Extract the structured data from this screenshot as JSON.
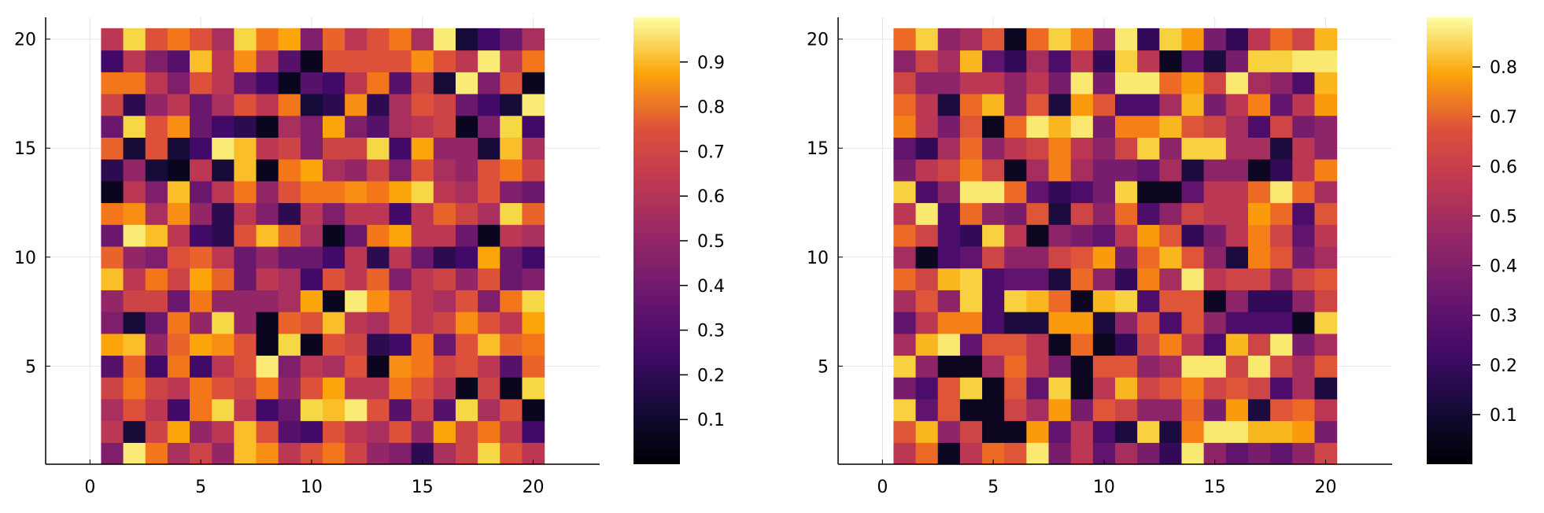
{
  "chart_data": [
    {
      "type": "heatmap",
      "title": "",
      "xlabel": "",
      "ylabel": "",
      "xlim": [
        -2,
        23
      ],
      "ylim": [
        0.5,
        21
      ],
      "xticks": [
        0,
        5,
        10,
        15,
        20
      ],
      "yticks": [
        5,
        10,
        15,
        20
      ],
      "xtick_labels": [
        "0",
        "5",
        "10",
        "15",
        "20"
      ],
      "ytick_labels": [
        "5",
        "10",
        "15",
        "20"
      ],
      "grid": true,
      "colormap": "inferno",
      "color_range": [
        0.0,
        1.0
      ],
      "colorbar_ticks": [
        0.1,
        0.2,
        0.3,
        0.4,
        0.5,
        0.6,
        0.7,
        0.8,
        0.9
      ],
      "colorbar_tick_labels": [
        "0.1",
        "0.2",
        "0.3",
        "0.4",
        "0.5",
        "0.6",
        "0.7",
        "0.8",
        "0.9"
      ],
      "x": [
        1,
        2,
        3,
        4,
        5,
        6,
        7,
        8,
        9,
        10,
        11,
        12,
        13,
        14,
        15,
        16,
        17,
        18,
        19,
        20
      ],
      "y": [
        1,
        2,
        3,
        4,
        5,
        6,
        7,
        8,
        9,
        10,
        11,
        12,
        13,
        14,
        15,
        16,
        17,
        18,
        19,
        20
      ],
      "z": [
        [
          0.35,
          0.95,
          0.7,
          0.45,
          0.55,
          0.4,
          0.85,
          0.75,
          0.5,
          0.6,
          0.7,
          0.55,
          0.4,
          0.35,
          0.15,
          0.45,
          0.55,
          0.9,
          0.6,
          0.5
        ],
        [
          0.5,
          0.1,
          0.55,
          0.8,
          0.4,
          0.5,
          0.85,
          0.6,
          0.25,
          0.2,
          0.6,
          0.5,
          0.45,
          0.6,
          0.4,
          0.8,
          0.55,
          0.7,
          0.5,
          0.2
        ],
        [
          0.45,
          0.6,
          0.5,
          0.2,
          0.7,
          0.9,
          0.5,
          0.2,
          0.3,
          0.9,
          0.85,
          0.95,
          0.6,
          0.25,
          0.55,
          0.25,
          0.9,
          0.45,
          0.6,
          0.05
        ],
        [
          0.55,
          0.7,
          0.55,
          0.5,
          0.7,
          0.6,
          0.55,
          0.7,
          0.4,
          0.6,
          0.8,
          0.5,
          0.5,
          0.7,
          0.6,
          0.5,
          0.05,
          0.55,
          0.05,
          0.9
        ],
        [
          0.25,
          0.65,
          0.2,
          0.7,
          0.2,
          0.5,
          0.6,
          0.95,
          0.35,
          0.5,
          0.45,
          0.6,
          0.05,
          0.75,
          0.7,
          0.55,
          0.6,
          0.5,
          0.25,
          0.65
        ],
        [
          0.8,
          0.85,
          0.4,
          0.65,
          0.8,
          0.75,
          0.6,
          0.05,
          0.9,
          0.05,
          0.6,
          0.55,
          0.15,
          0.2,
          0.7,
          0.3,
          0.6,
          0.85,
          0.65,
          0.7
        ],
        [
          0.35,
          0.1,
          0.3,
          0.7,
          0.4,
          0.9,
          0.4,
          0.05,
          0.65,
          0.6,
          0.85,
          0.5,
          0.45,
          0.6,
          0.5,
          0.55,
          0.75,
          0.6,
          0.5,
          0.8
        ],
        [
          0.4,
          0.55,
          0.55,
          0.3,
          0.7,
          0.4,
          0.4,
          0.4,
          0.45,
          0.8,
          0.05,
          0.95,
          0.75,
          0.6,
          0.5,
          0.45,
          0.6,
          0.35,
          0.7,
          0.9
        ],
        [
          0.85,
          0.5,
          0.7,
          0.55,
          0.8,
          0.65,
          0.3,
          0.5,
          0.45,
          0.2,
          0.6,
          0.5,
          0.65,
          0.35,
          0.5,
          0.55,
          0.4,
          0.6,
          0.3,
          0.35
        ],
        [
          0.65,
          0.4,
          0.35,
          0.6,
          0.65,
          0.5,
          0.3,
          0.4,
          0.3,
          0.3,
          0.2,
          0.5,
          0.15,
          0.5,
          0.3,
          0.15,
          0.2,
          0.8,
          0.3,
          0.2
        ],
        [
          0.3,
          0.95,
          0.85,
          0.5,
          0.2,
          0.15,
          0.6,
          0.85,
          0.65,
          0.45,
          0.05,
          0.3,
          0.7,
          0.8,
          0.5,
          0.5,
          0.3,
          0.05,
          0.5,
          0.45
        ],
        [
          0.7,
          0.75,
          0.45,
          0.75,
          0.4,
          0.15,
          0.5,
          0.35,
          0.15,
          0.5,
          0.35,
          0.5,
          0.5,
          0.2,
          0.5,
          0.65,
          0.55,
          0.45,
          0.9,
          0.65
        ],
        [
          0.05,
          0.5,
          0.35,
          0.85,
          0.3,
          0.5,
          0.7,
          0.4,
          0.6,
          0.7,
          0.7,
          0.75,
          0.7,
          0.8,
          0.9,
          0.5,
          0.45,
          0.6,
          0.35,
          0.3
        ],
        [
          0.15,
          0.4,
          0.1,
          0.05,
          0.5,
          0.1,
          0.85,
          0.05,
          0.7,
          0.8,
          0.45,
          0.4,
          0.55,
          0.35,
          0.6,
          0.45,
          0.4,
          0.6,
          0.7,
          0.55
        ],
        [
          0.65,
          0.1,
          0.6,
          0.1,
          0.2,
          0.95,
          0.85,
          0.5,
          0.55,
          0.35,
          0.55,
          0.55,
          0.9,
          0.2,
          0.8,
          0.4,
          0.4,
          0.1,
          0.85,
          0.45
        ],
        [
          0.3,
          0.9,
          0.6,
          0.75,
          0.3,
          0.2,
          0.15,
          0.05,
          0.45,
          0.35,
          0.8,
          0.35,
          0.25,
          0.45,
          0.5,
          0.55,
          0.05,
          0.35,
          0.9,
          0.2
        ],
        [
          0.55,
          0.15,
          0.4,
          0.5,
          0.3,
          0.45,
          0.6,
          0.5,
          0.7,
          0.1,
          0.15,
          0.75,
          0.15,
          0.45,
          0.6,
          0.55,
          0.3,
          0.2,
          0.1,
          0.95
        ],
        [
          0.7,
          0.7,
          0.5,
          0.35,
          0.6,
          0.5,
          0.3,
          0.2,
          0.05,
          0.25,
          0.2,
          0.5,
          0.7,
          0.25,
          0.55,
          0.1,
          0.95,
          0.35,
          0.6,
          0.05
        ],
        [
          0.2,
          0.5,
          0.35,
          0.25,
          0.85,
          0.5,
          0.75,
          0.5,
          0.25,
          0.05,
          0.6,
          0.6,
          0.6,
          0.6,
          0.75,
          0.6,
          0.5,
          0.95,
          0.5,
          0.7
        ],
        [
          0.5,
          0.9,
          0.6,
          0.7,
          0.6,
          0.45,
          0.9,
          0.7,
          0.8,
          0.35,
          0.65,
          0.5,
          0.6,
          0.7,
          0.45,
          0.95,
          0.1,
          0.2,
          0.3,
          0.45
        ]
      ]
    },
    {
      "type": "heatmap",
      "title": "",
      "xlabel": "",
      "ylabel": "",
      "xlim": [
        -2,
        23
      ],
      "ylim": [
        0.5,
        21
      ],
      "xticks": [
        0,
        5,
        10,
        15,
        20
      ],
      "yticks": [
        5,
        10,
        15,
        20
      ],
      "xtick_labels": [
        "0",
        "5",
        "10",
        "15",
        "20"
      ],
      "ytick_labels": [
        "5",
        "10",
        "15",
        "20"
      ],
      "grid": true,
      "colormap": "inferno",
      "color_range": [
        0.0,
        0.9
      ],
      "colorbar_ticks": [
        0.1,
        0.2,
        0.3,
        0.4,
        0.5,
        0.6,
        0.7,
        0.8
      ],
      "colorbar_tick_labels": [
        "0.1",
        "0.2",
        "0.3",
        "0.4",
        "0.5",
        "0.6",
        "0.7",
        "0.8"
      ],
      "x": [
        1,
        2,
        3,
        4,
        5,
        6,
        7,
        8,
        9,
        10,
        11,
        12,
        13,
        14,
        15,
        16,
        17,
        18,
        19,
        20
      ],
      "y": [
        1,
        2,
        3,
        4,
        5,
        6,
        7,
        8,
        9,
        10,
        11,
        12,
        13,
        14,
        15,
        16,
        17,
        18,
        19,
        20
      ],
      "z": [
        [
          0.45,
          0.6,
          0.05,
          0.45,
          0.6,
          0.55,
          0.85,
          0.3,
          0.45,
          0.25,
          0.4,
          0.3,
          0.15,
          0.85,
          0.35,
          0.25,
          0.3,
          0.25,
          0.35,
          0.5
        ],
        [
          0.55,
          0.75,
          0.35,
          0.5,
          0.05,
          0.05,
          0.7,
          0.25,
          0.45,
          0.2,
          0.1,
          0.8,
          0.1,
          0.65,
          0.85,
          0.85,
          0.75,
          0.75,
          0.7,
          0.3
        ],
        [
          0.8,
          0.25,
          0.55,
          0.05,
          0.05,
          0.5,
          0.4,
          0.7,
          0.3,
          0.55,
          0.5,
          0.35,
          0.35,
          0.6,
          0.3,
          0.7,
          0.1,
          0.55,
          0.6,
          0.45
        ],
        [
          0.3,
          0.2,
          0.55,
          0.8,
          0.05,
          0.55,
          0.25,
          0.8,
          0.05,
          0.45,
          0.75,
          0.5,
          0.55,
          0.65,
          0.5,
          0.55,
          0.5,
          0.2,
          0.4,
          0.1
        ],
        [
          0.8,
          0.35,
          0.05,
          0.05,
          0.4,
          0.6,
          0.45,
          0.3,
          0.05,
          0.55,
          0.55,
          0.35,
          0.4,
          0.85,
          0.85,
          0.5,
          0.85,
          0.5,
          0.4,
          0.55
        ],
        [
          0.4,
          0.75,
          0.85,
          0.25,
          0.55,
          0.55,
          0.45,
          0.05,
          0.6,
          0.05,
          0.15,
          0.5,
          0.65,
          0.45,
          0.2,
          0.75,
          0.5,
          0.85,
          0.3,
          0.4
        ],
        [
          0.25,
          0.45,
          0.65,
          0.65,
          0.2,
          0.1,
          0.1,
          0.7,
          0.7,
          0.1,
          0.35,
          0.55,
          0.2,
          0.55,
          0.35,
          0.2,
          0.2,
          0.2,
          0.05,
          0.8
        ],
        [
          0.4,
          0.55,
          0.35,
          0.8,
          0.2,
          0.8,
          0.75,
          0.6,
          0.05,
          0.75,
          0.8,
          0.2,
          0.55,
          0.55,
          0.05,
          0.35,
          0.15,
          0.15,
          0.35,
          0.5
        ],
        [
          0.6,
          0.5,
          0.75,
          0.8,
          0.2,
          0.25,
          0.25,
          0.1,
          0.6,
          0.35,
          0.15,
          0.65,
          0.4,
          0.85,
          0.45,
          0.5,
          0.5,
          0.35,
          0.5,
          0.55
        ],
        [
          0.4,
          0.05,
          0.2,
          0.25,
          0.5,
          0.35,
          0.35,
          0.5,
          0.55,
          0.7,
          0.3,
          0.6,
          0.75,
          0.55,
          0.35,
          0.1,
          0.65,
          0.55,
          0.3,
          0.4
        ],
        [
          0.6,
          0.5,
          0.2,
          0.15,
          0.8,
          0.45,
          0.05,
          0.35,
          0.3,
          0.25,
          0.45,
          0.7,
          0.55,
          0.15,
          0.3,
          0.45,
          0.65,
          0.5,
          0.25,
          0.45
        ],
        [
          0.45,
          0.85,
          0.2,
          0.6,
          0.35,
          0.3,
          0.55,
          0.1,
          0.5,
          0.35,
          0.6,
          0.2,
          0.35,
          0.5,
          0.45,
          0.45,
          0.7,
          0.6,
          0.2,
          0.55
        ],
        [
          0.8,
          0.2,
          0.35,
          0.85,
          0.85,
          0.6,
          0.25,
          0.15,
          0.2,
          0.3,
          0.8,
          0.05,
          0.05,
          0.25,
          0.45,
          0.45,
          0.6,
          0.85,
          0.6,
          0.4
        ],
        [
          0.3,
          0.45,
          0.5,
          0.65,
          0.5,
          0.05,
          0.4,
          0.65,
          0.4,
          0.3,
          0.3,
          0.25,
          0.4,
          0.1,
          0.35,
          0.35,
          0.05,
          0.15,
          0.45,
          0.65
        ],
        [
          0.25,
          0.15,
          0.4,
          0.6,
          0.35,
          0.45,
          0.5,
          0.65,
          0.45,
          0.35,
          0.5,
          0.8,
          0.35,
          0.8,
          0.8,
          0.4,
          0.4,
          0.1,
          0.45,
          0.35
        ],
        [
          0.65,
          0.45,
          0.3,
          0.55,
          0.05,
          0.6,
          0.85,
          0.75,
          0.85,
          0.3,
          0.65,
          0.65,
          0.75,
          0.55,
          0.5,
          0.4,
          0.2,
          0.5,
          0.3,
          0.35
        ],
        [
          0.6,
          0.45,
          0.1,
          0.6,
          0.75,
          0.35,
          0.55,
          0.1,
          0.7,
          0.55,
          0.2,
          0.2,
          0.4,
          0.75,
          0.3,
          0.45,
          0.65,
          0.25,
          0.45,
          0.7
        ],
        [
          0.5,
          0.35,
          0.35,
          0.45,
          0.45,
          0.35,
          0.45,
          0.3,
          0.85,
          0.3,
          0.85,
          0.85,
          0.6,
          0.7,
          0.5,
          0.85,
          0.4,
          0.35,
          0.2,
          0.75
        ],
        [
          0.35,
          0.5,
          0.4,
          0.75,
          0.25,
          0.15,
          0.4,
          0.2,
          0.45,
          0.15,
          0.8,
          0.45,
          0.05,
          0.25,
          0.1,
          0.3,
          0.8,
          0.8,
          0.85,
          0.85
        ],
        [
          0.6,
          0.8,
          0.35,
          0.4,
          0.55,
          0.05,
          0.6,
          0.8,
          0.65,
          0.35,
          0.85,
          0.15,
          0.8,
          0.7,
          0.3,
          0.15,
          0.45,
          0.6,
          0.5,
          0.75
        ]
      ]
    }
  ]
}
